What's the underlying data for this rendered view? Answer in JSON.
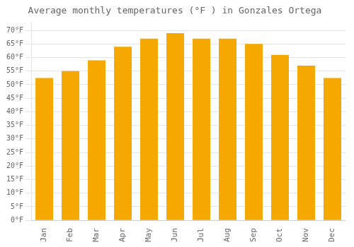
{
  "chart_data": {
    "type": "bar",
    "title": "Average monthly temperatures (°F ) in Gonzales Ortega",
    "categories": [
      "Jan",
      "Feb",
      "Mar",
      "Apr",
      "May",
      "Jun",
      "Jul",
      "Aug",
      "Sep",
      "Oct",
      "Nov",
      "Dec"
    ],
    "values": [
      52.5,
      55.0,
      59.0,
      64.0,
      67.0,
      69.0,
      67.0,
      67.0,
      65.0,
      61.0,
      57.0,
      52.5
    ],
    "color": "#F5A800",
    "ylim": [
      0,
      73
    ],
    "yticks": [
      {
        "value": 0,
        "label": "0°F"
      },
      {
        "value": 5,
        "label": "5°F"
      },
      {
        "value": 10,
        "label": "10°F"
      },
      {
        "value": 15,
        "label": "15°F"
      },
      {
        "value": 20,
        "label": "20°F"
      },
      {
        "value": 25,
        "label": "25°F"
      },
      {
        "value": 30,
        "label": "30°F"
      },
      {
        "value": 35,
        "label": "35°F"
      },
      {
        "value": 40,
        "label": "40°F"
      },
      {
        "value": 45,
        "label": "45°F"
      },
      {
        "value": 50,
        "label": "50°F"
      },
      {
        "value": 55,
        "label": "55°F"
      },
      {
        "value": 60,
        "label": "60°F"
      },
      {
        "value": 65,
        "label": "65°F"
      },
      {
        "value": 70,
        "label": "70°F"
      }
    ],
    "grid": true
  }
}
